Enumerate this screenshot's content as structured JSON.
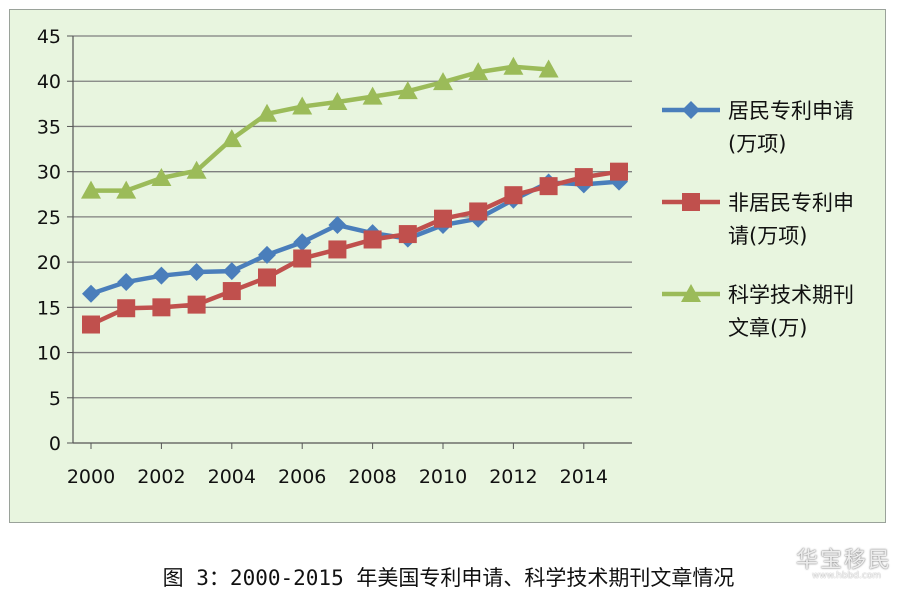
{
  "chart_data": {
    "type": "line",
    "title": "",
    "xlabel": "",
    "ylabel": "",
    "xlim": [
      2000,
      2015
    ],
    "ylim": [
      0,
      45
    ],
    "x_ticks": [
      2000,
      2002,
      2004,
      2006,
      2008,
      2010,
      2012,
      2014
    ],
    "y_ticks": [
      0,
      5,
      10,
      15,
      20,
      25,
      30,
      35,
      40,
      45
    ],
    "grid": "horizontal",
    "legend_position": "right",
    "series": [
      {
        "name": "居民专利申请(万项)",
        "name_lines": [
          "居民专利申请",
          "(万项)"
        ],
        "color": "#4a7ebb",
        "marker": "diamond",
        "x": [
          2000,
          2001,
          2002,
          2003,
          2004,
          2005,
          2006,
          2007,
          2008,
          2009,
          2010,
          2011,
          2012,
          2013,
          2014,
          2015
        ],
        "values": [
          16.5,
          17.8,
          18.5,
          18.9,
          19.0,
          20.8,
          22.2,
          24.1,
          23.2,
          22.6,
          24.1,
          24.8,
          26.9,
          28.8,
          28.6,
          28.9
        ]
      },
      {
        "name": "非居民专利申请(万项)",
        "name_lines": [
          "非居民专利申",
          "请(万项)"
        ],
        "color": "#c0504d",
        "marker": "square",
        "x": [
          2000,
          2001,
          2002,
          2003,
          2004,
          2005,
          2006,
          2007,
          2008,
          2009,
          2010,
          2011,
          2012,
          2013,
          2014,
          2015
        ],
        "values": [
          13.1,
          14.9,
          15.0,
          15.3,
          16.8,
          18.3,
          20.4,
          21.4,
          22.5,
          23.1,
          24.8,
          25.6,
          27.4,
          28.4,
          29.4,
          30.0
        ]
      },
      {
        "name": "科学技术期刊文章(万)",
        "name_lines": [
          "科学技术期刊",
          "文章(万)"
        ],
        "color": "#9bbb59",
        "marker": "triangle",
        "x": [
          2000,
          2001,
          2002,
          2003,
          2004,
          2005,
          2006,
          2007,
          2008,
          2009,
          2010,
          2011,
          2012,
          2013
        ],
        "values": [
          27.9,
          27.9,
          29.3,
          30.1,
          33.6,
          36.4,
          37.2,
          37.7,
          38.3,
          38.9,
          39.9,
          41.0,
          41.6,
          41.3
        ]
      }
    ]
  },
  "caption": "图 3：2000-2015 年美国专利申请、科学技术期刊文章情况",
  "watermark": "华宝移民",
  "watermark_sub": "www.hbbd.com"
}
